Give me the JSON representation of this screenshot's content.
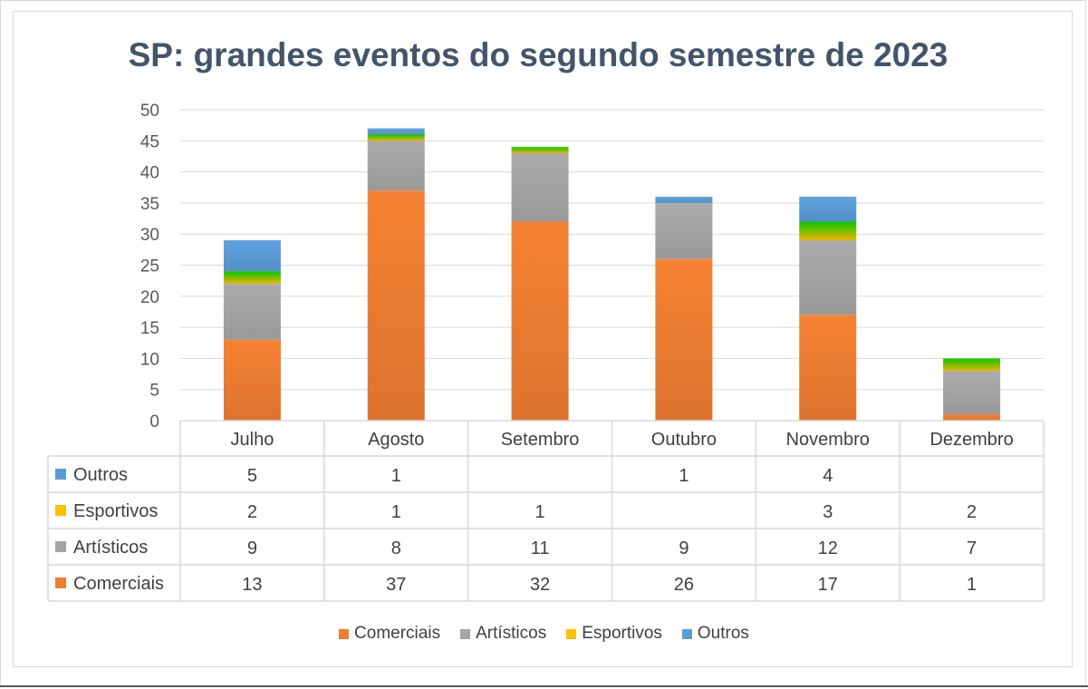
{
  "chart_data": {
    "type": "bar",
    "stacked": true,
    "title": "SP: grandes eventos do segundo semestre de 2023",
    "categories": [
      "Julho",
      "Agosto",
      "Setembro",
      "Outubro",
      "Novembro",
      "Dezembro"
    ],
    "series": [
      {
        "name": "Comerciais",
        "color": "#ed7d31",
        "values": [
          13,
          37,
          32,
          26,
          17,
          1
        ]
      },
      {
        "name": "Artísticos",
        "color": "#a5a5a5",
        "values": [
          9,
          8,
          11,
          9,
          12,
          7
        ]
      },
      {
        "name": "Esportivos",
        "color": "#ffc000",
        "values": [
          2,
          1,
          1,
          null,
          3,
          2
        ]
      },
      {
        "name": "Outros",
        "color": "#5b9bd5",
        "values": [
          5,
          1,
          null,
          1,
          4,
          null
        ]
      }
    ],
    "y_ticks": [
      "0",
      "5",
      "10",
      "15",
      "20",
      "25",
      "30",
      "35",
      "40",
      "45",
      "50"
    ],
    "ylim": [
      0,
      50
    ],
    "grid": true,
    "data_table": true,
    "legend_position": "bottom"
  }
}
